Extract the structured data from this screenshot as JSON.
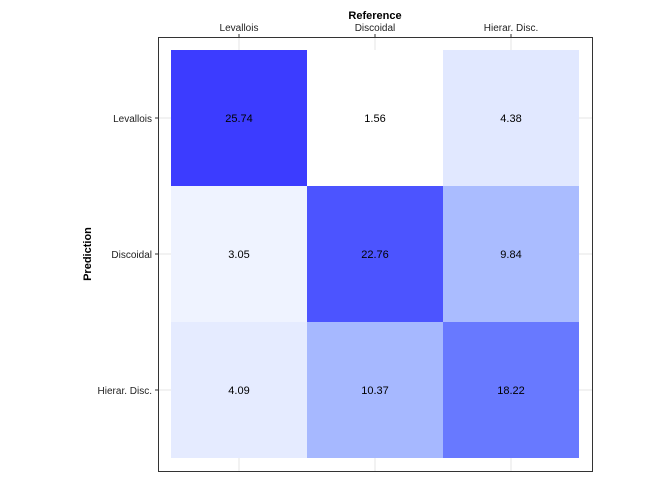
{
  "chart_data": {
    "type": "heatmap",
    "x_title": "Reference",
    "y_title": "Prediction",
    "x_categories": [
      "Levallois",
      "Discoidal",
      "Hierar. Disc."
    ],
    "y_categories": [
      "Levallois",
      "Discoidal",
      "Hierar. Disc."
    ],
    "values": [
      [
        25.74,
        1.56,
        4.38
      ],
      [
        3.05,
        22.76,
        9.84
      ],
      [
        4.09,
        10.37,
        18.22
      ]
    ],
    "color_low": "#ffffff",
    "color_high": "#3c3cff",
    "grid": true,
    "x_axis_position": "top"
  }
}
